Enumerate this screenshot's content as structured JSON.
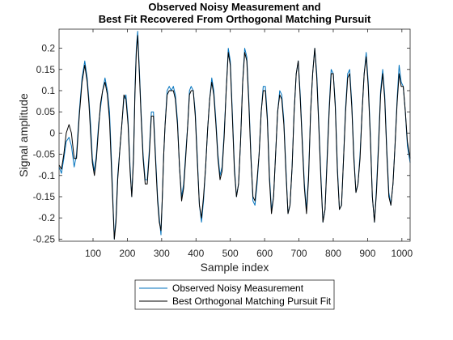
{
  "chart_data": {
    "type": "line",
    "title_line1": "Observed Noisy Measurement and",
    "title_line2": "Best Fit Recovered From Orthogonal Matching Pursuit",
    "xlabel": "Sample index",
    "ylabel": "Signal amplitude",
    "xlim": [
      1,
      1024
    ],
    "ylim": [
      -0.255,
      0.245
    ],
    "xticks": [
      100,
      200,
      300,
      400,
      500,
      600,
      700,
      800,
      900,
      1000
    ],
    "yticks": [
      -0.25,
      -0.2,
      -0.15,
      -0.1,
      -0.05,
      0,
      0.05,
      0.1,
      0.15,
      0.2
    ],
    "ytick_labels": [
      "-0.25",
      "-0.2",
      "-0.15",
      "-0.1",
      "-0.05",
      "0",
      "0.05",
      "0.1",
      "0.15",
      "0.2"
    ],
    "grid": false,
    "legend_position": "bottom-outside",
    "series": [
      {
        "name": "Observed Noisy Measurement",
        "color": "#0072BD",
        "x": [
          1,
          8,
          15,
          22,
          30,
          37,
          45,
          52,
          60,
          68,
          76,
          83,
          88,
          93,
          98,
          104,
          110,
          116,
          122,
          128,
          135,
          142,
          148,
          153,
          158,
          162,
          167,
          172,
          178,
          184,
          190,
          196,
          202,
          208,
          213,
          218,
          222,
          226,
          230,
          235,
          240,
          246,
          252,
          258,
          264,
          270,
          276,
          282,
          288,
          293,
          298,
          302,
          306,
          310,
          316,
          322,
          328,
          334,
          340,
          346,
          352,
          358,
          364,
          370,
          376,
          381,
          386,
          392,
          398,
          404,
          410,
          416,
          422,
          428,
          434,
          440,
          446,
          452,
          458,
          464,
          470,
          476,
          482,
          488,
          494,
          500,
          506,
          512,
          518,
          524,
          530,
          536,
          542,
          548,
          554,
          560,
          566,
          572,
          578,
          584,
          590,
          596,
          602,
          608,
          614,
          620,
          626,
          632,
          638,
          644,
          650,
          656,
          662,
          668,
          674,
          680,
          686,
          692,
          698,
          704,
          710,
          716,
          722,
          728,
          734,
          740,
          746,
          752,
          758,
          764,
          770,
          776,
          782,
          788,
          794,
          800,
          806,
          812,
          818,
          824,
          830,
          836,
          842,
          848,
          854,
          860,
          866,
          872,
          878,
          884,
          890,
          896,
          902,
          908,
          914,
          920,
          926,
          932,
          938,
          944,
          950,
          956,
          962,
          968,
          974,
          980,
          986,
          992,
          998,
          1004,
          1010,
          1016,
          1024
        ],
        "y": [
          -0.08,
          -0.095,
          -0.06,
          -0.02,
          -0.01,
          -0.03,
          -0.08,
          -0.05,
          0.05,
          0.13,
          0.17,
          0.13,
          0.08,
          0.02,
          -0.06,
          -0.09,
          -0.05,
          0.02,
          0.06,
          0.1,
          0.13,
          0.1,
          0.05,
          -0.05,
          -0.16,
          -0.25,
          -0.2,
          -0.1,
          -0.04,
          0.02,
          0.08,
          0.09,
          0.03,
          -0.08,
          -0.15,
          -0.05,
          0.1,
          0.2,
          0.24,
          0.15,
          0.05,
          -0.05,
          -0.11,
          -0.11,
          -0.04,
          0.05,
          0.05,
          -0.05,
          -0.15,
          -0.2,
          -0.24,
          -0.15,
          -0.05,
          0.02,
          0.1,
          0.11,
          0.1,
          0.11,
          0.09,
          0.03,
          -0.08,
          -0.15,
          -0.12,
          -0.05,
          0.02,
          0.1,
          0.11,
          0.1,
          0.05,
          -0.06,
          -0.17,
          -0.21,
          -0.16,
          -0.08,
          0.01,
          0.08,
          0.13,
          0.1,
          0.03,
          -0.05,
          -0.1,
          -0.08,
          0.0,
          0.1,
          0.2,
          0.17,
          0.05,
          -0.08,
          -0.15,
          -0.12,
          -0.02,
          0.12,
          0.2,
          0.18,
          0.08,
          -0.05,
          -0.16,
          -0.17,
          -0.12,
          -0.05,
          0.05,
          0.11,
          0.11,
          0.04,
          -0.1,
          -0.18,
          -0.15,
          -0.05,
          0.05,
          0.1,
          0.09,
          0.03,
          -0.08,
          -0.19,
          -0.17,
          -0.08,
          0.05,
          0.14,
          0.17,
          0.09,
          -0.02,
          -0.12,
          -0.18,
          -0.1,
          0.05,
          0.14,
          0.2,
          0.14,
          0.02,
          -0.1,
          -0.21,
          -0.18,
          -0.06,
          0.06,
          0.15,
          0.14,
          0.07,
          -0.08,
          -0.18,
          -0.17,
          -0.06,
          0.06,
          0.14,
          0.15,
          0.07,
          -0.05,
          -0.14,
          -0.12,
          -0.05,
          0.05,
          0.14,
          0.19,
          0.12,
          0.0,
          -0.15,
          -0.21,
          -0.13,
          -0.02,
          0.1,
          0.15,
          0.09,
          -0.04,
          -0.14,
          -0.17,
          -0.12,
          -0.03,
          0.08,
          0.16,
          0.12,
          0.11,
          0.05,
          -0.03,
          -0.07
        ]
      },
      {
        "name": "Best Orthogonal Matching Pursuit Fit",
        "color": "#000000",
        "x": [
          1,
          8,
          15,
          22,
          30,
          37,
          45,
          52,
          60,
          68,
          76,
          83,
          88,
          93,
          98,
          104,
          110,
          116,
          122,
          128,
          135,
          142,
          148,
          153,
          158,
          162,
          167,
          172,
          178,
          184,
          190,
          196,
          202,
          208,
          213,
          218,
          222,
          226,
          230,
          235,
          240,
          246,
          252,
          258,
          264,
          270,
          276,
          282,
          288,
          293,
          298,
          302,
          306,
          310,
          316,
          322,
          328,
          334,
          340,
          346,
          352,
          358,
          364,
          370,
          376,
          381,
          386,
          392,
          398,
          404,
          410,
          416,
          422,
          428,
          434,
          440,
          446,
          452,
          458,
          464,
          470,
          476,
          482,
          488,
          494,
          500,
          506,
          512,
          518,
          524,
          530,
          536,
          542,
          548,
          554,
          560,
          566,
          572,
          578,
          584,
          590,
          596,
          602,
          608,
          614,
          620,
          626,
          632,
          638,
          644,
          650,
          656,
          662,
          668,
          674,
          680,
          686,
          692,
          698,
          704,
          710,
          716,
          722,
          728,
          734,
          740,
          746,
          752,
          758,
          764,
          770,
          776,
          782,
          788,
          794,
          800,
          806,
          812,
          818,
          824,
          830,
          836,
          842,
          848,
          854,
          860,
          866,
          872,
          878,
          884,
          890,
          896,
          902,
          908,
          914,
          920,
          926,
          932,
          938,
          944,
          950,
          956,
          962,
          968,
          974,
          980,
          986,
          992,
          998,
          1004,
          1010,
          1016,
          1024
        ],
        "y": [
          -0.075,
          -0.085,
          -0.05,
          0.0,
          0.02,
          0.0,
          -0.06,
          -0.06,
          0.04,
          0.12,
          0.16,
          0.12,
          0.07,
          0.0,
          -0.07,
          -0.1,
          -0.06,
          0.01,
          0.07,
          0.1,
          0.12,
          0.09,
          0.03,
          -0.07,
          -0.17,
          -0.25,
          -0.21,
          -0.11,
          -0.04,
          0.02,
          0.09,
          0.08,
          0.02,
          -0.09,
          -0.15,
          -0.06,
          0.09,
          0.19,
          0.23,
          0.14,
          0.04,
          -0.06,
          -0.12,
          -0.12,
          -0.05,
          0.04,
          0.04,
          -0.06,
          -0.16,
          -0.21,
          -0.23,
          -0.15,
          -0.05,
          0.02,
          0.09,
          0.1,
          0.1,
          0.1,
          0.08,
          0.02,
          -0.08,
          -0.16,
          -0.13,
          -0.06,
          0.02,
          0.09,
          0.1,
          0.1,
          0.04,
          -0.07,
          -0.17,
          -0.2,
          -0.15,
          -0.08,
          0.01,
          0.08,
          0.12,
          0.09,
          0.02,
          -0.06,
          -0.11,
          -0.09,
          -0.01,
          0.1,
          0.19,
          0.16,
          0.04,
          -0.09,
          -0.15,
          -0.12,
          -0.02,
          0.12,
          0.19,
          0.17,
          0.07,
          -0.06,
          -0.15,
          -0.16,
          -0.11,
          -0.05,
          0.05,
          0.1,
          0.1,
          0.03,
          -0.11,
          -0.19,
          -0.15,
          -0.05,
          0.05,
          0.09,
          0.08,
          0.02,
          -0.09,
          -0.19,
          -0.17,
          -0.08,
          0.05,
          0.14,
          0.17,
          0.08,
          -0.03,
          -0.13,
          -0.19,
          -0.11,
          0.05,
          0.14,
          0.2,
          0.13,
          0.01,
          -0.11,
          -0.21,
          -0.18,
          -0.07,
          0.05,
          0.14,
          0.14,
          0.06,
          -0.09,
          -0.18,
          -0.17,
          -0.06,
          0.05,
          0.13,
          0.14,
          0.06,
          -0.06,
          -0.14,
          -0.12,
          -0.06,
          0.05,
          0.14,
          0.18,
          0.11,
          -0.01,
          -0.15,
          -0.21,
          -0.14,
          -0.03,
          0.09,
          0.14,
          0.08,
          -0.05,
          -0.15,
          -0.17,
          -0.12,
          -0.03,
          0.07,
          0.14,
          0.11,
          0.11,
          0.05,
          -0.02,
          -0.06
        ]
      }
    ]
  }
}
